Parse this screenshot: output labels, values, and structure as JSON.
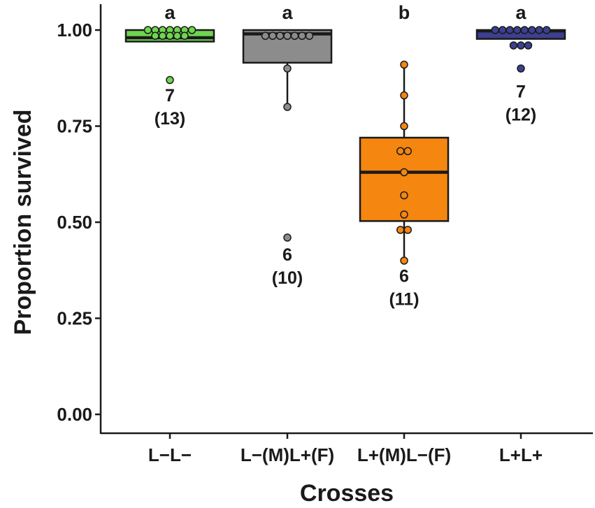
{
  "chart_data": {
    "type": "box",
    "xlabel": "Crosses",
    "ylabel": "Proportion survived",
    "ylim": [
      0,
      1.05
    ],
    "yticks": [
      "0.00",
      "0.25",
      "0.50",
      "0.75",
      "1.00"
    ],
    "grid": false,
    "groups": [
      {
        "category": "L−L−",
        "color": "#6fd64f",
        "letter": "a",
        "n_label": "7",
        "n_paren": "(13)",
        "n_label_y": 0.815,
        "box": {
          "q1": 0.97,
          "median": 0.98,
          "q3": 1.0,
          "whisker_low": 0.97,
          "whisker_high": 1.0
        },
        "points": [
          1.0,
          1.0,
          1.0,
          1.0,
          1.0,
          1.0,
          1.0,
          0.985,
          0.985,
          0.985,
          0.985,
          0.985,
          0.87
        ]
      },
      {
        "category": "L−(M)L+(F)",
        "color": "#8c8c8c",
        "letter": "a",
        "n_label": "6",
        "n_paren": "(10)",
        "n_label_y": 0.4,
        "box": {
          "q1": 0.915,
          "median": 0.99,
          "q3": 1.0,
          "whisker_low": 0.8,
          "whisker_high": 1.0
        },
        "points": [
          0.985,
          0.985,
          0.985,
          0.985,
          0.985,
          0.985,
          0.985,
          0.9,
          0.8,
          0.46
        ]
      },
      {
        "category": "L+(M)L−(F)",
        "color": "#f5860f",
        "letter": "b",
        "n_label": "6",
        "n_paren": "(11)",
        "n_label_y": 0.345,
        "box": {
          "q1": 0.503,
          "median": 0.63,
          "q3": 0.72,
          "whisker_low": 0.4,
          "whisker_high": 0.91
        },
        "points": [
          0.91,
          0.83,
          0.75,
          0.685,
          0.685,
          0.63,
          0.57,
          0.52,
          0.48,
          0.48,
          0.4
        ]
      },
      {
        "category": "L+L+",
        "color": "#3d3f8f",
        "letter": "a",
        "n_label": "7",
        "n_paren": "(12)",
        "n_label_y": 0.825,
        "box": {
          "q1": 0.977,
          "median": 0.998,
          "q3": 1.0,
          "whisker_low": 0.977,
          "whisker_high": 1.0
        },
        "points": [
          1.0,
          1.0,
          1.0,
          1.0,
          1.0,
          1.0,
          1.0,
          1.0,
          0.96,
          0.96,
          0.96,
          0.9
        ]
      }
    ]
  }
}
